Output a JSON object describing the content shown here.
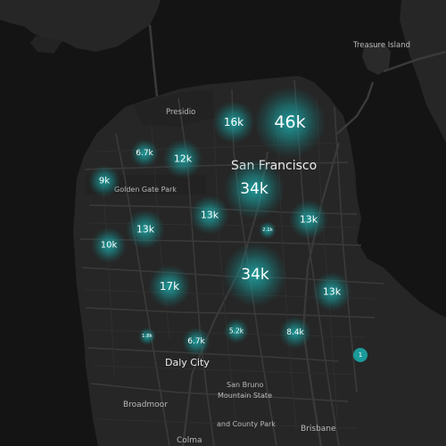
{
  "map": {
    "colors": {
      "water": "#141414",
      "land": "#262626",
      "cluster": "#1fa3a3",
      "cluster_core": "#1b8f8f",
      "text": "#ffffff",
      "marker": "#1b9a9a"
    },
    "place_labels": {
      "treasure_island": "Treasure Island",
      "presidio": "Presidio",
      "san_francisco": "San Francisco",
      "golden_gate_park": "Golden Gate Park",
      "daly_city": "Daly City",
      "broadmoor": "Broadmoor",
      "san_bruno_1": "San Bruno",
      "san_bruno_2": "Mountain State",
      "san_bruno_3": "and County Park",
      "brisbane": "Brisbane",
      "colma": "Colma"
    },
    "clusters": [
      {
        "id": "c1",
        "label": "46k",
        "value": 46000
      },
      {
        "id": "c2",
        "label": "16k",
        "value": 16000
      },
      {
        "id": "c3",
        "label": "6.7k",
        "value": 6700
      },
      {
        "id": "c4",
        "label": "12k",
        "value": 12000
      },
      {
        "id": "c5",
        "label": "9k",
        "value": 9000
      },
      {
        "id": "c6",
        "label": "34k",
        "value": 34000
      },
      {
        "id": "c7",
        "label": "13k",
        "value": 13000
      },
      {
        "id": "c8",
        "label": "13k",
        "value": 13000
      },
      {
        "id": "c9",
        "label": "2.1k",
        "value": 2100
      },
      {
        "id": "c10",
        "label": "10k",
        "value": 10000
      },
      {
        "id": "c11",
        "label": "13k",
        "value": 13000
      },
      {
        "id": "c12",
        "label": "34k",
        "value": 34000
      },
      {
        "id": "c13",
        "label": "17k",
        "value": 17000
      },
      {
        "id": "c14",
        "label": "13k",
        "value": 13000
      },
      {
        "id": "c15",
        "label": "5.2k",
        "value": 5200
      },
      {
        "id": "c16",
        "label": "8.4k",
        "value": 8400
      },
      {
        "id": "c17",
        "label": "1.8k",
        "value": 1800
      },
      {
        "id": "c18",
        "label": "6.7k",
        "value": 6700
      }
    ],
    "marker": {
      "label": "1"
    }
  }
}
